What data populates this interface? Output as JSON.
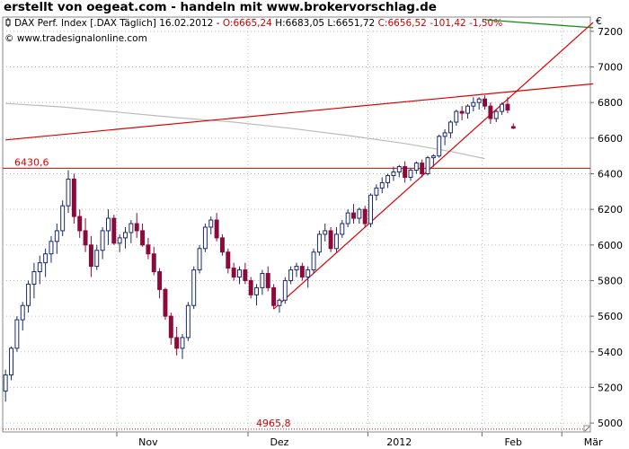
{
  "header": {
    "banner": "erstellt von oegeat.com - handeln mit www.brokervorschlag.de"
  },
  "chart_data": {
    "type": "candlestick",
    "title_parts": {
      "name": "DAX Perf. Index [.DAX  Täglich] 16.02.2012 - ",
      "ohlc_open": "O:6665,24",
      "ohlc_high": " H:6683,05",
      "ohlc_low": " L:6651,72",
      "ohlc_close": " C:6656,52 -101,42 -1,50%"
    },
    "copyright": "© www.tradesignalonline.com",
    "currency": "€",
    "y_ticks": [
      "5000",
      "5200",
      "5400",
      "5600",
      "5800",
      "6000",
      "6200",
      "6400",
      "6600",
      "6800",
      "7000",
      "7200"
    ],
    "ylim": [
      4950,
      7280
    ],
    "x_labels": [
      "Nov",
      "Dez",
      "2012",
      "Feb",
      "Mär"
    ],
    "x_label_index": [
      20,
      43,
      64,
      84,
      98
    ],
    "num_slots": 103,
    "h_lines": [
      {
        "label": "6430,6",
        "value": 6430.6,
        "color": "#dd0000"
      },
      {
        "label": "4965,8",
        "value": 4965.8,
        "color": "#dd0000",
        "dotted": true
      }
    ],
    "trend_lines": [
      {
        "from": [
          0,
          6590
        ],
        "to": [
          103,
          6905
        ],
        "color": "#dd0000"
      },
      {
        "from": [
          47,
          5640
        ],
        "to": [
          103,
          7250
        ],
        "color": "#dd0000"
      },
      {
        "from": [
          84,
          7265
        ],
        "to": [
          103,
          7220
        ],
        "color": "#118811"
      }
    ],
    "moving_average": {
      "color": "#bbbbbb",
      "points": [
        [
          0,
          6795
        ],
        [
          10,
          6775
        ],
        [
          20,
          6745
        ],
        [
          30,
          6715
        ],
        [
          40,
          6690
        ],
        [
          50,
          6655
        ],
        [
          60,
          6615
        ],
        [
          70,
          6570
        ],
        [
          78,
          6525
        ],
        [
          84,
          6485
        ]
      ]
    },
    "candles": [
      [
        5180,
        5300,
        5120,
        5270
      ],
      [
        5270,
        5430,
        5240,
        5420
      ],
      [
        5420,
        5600,
        5400,
        5580
      ],
      [
        5580,
        5680,
        5520,
        5660
      ],
      [
        5660,
        5800,
        5620,
        5780
      ],
      [
        5780,
        5900,
        5700,
        5850
      ],
      [
        5850,
        5940,
        5780,
        5900
      ],
      [
        5900,
        5980,
        5820,
        5950
      ],
      [
        5950,
        6050,
        5900,
        6020
      ],
      [
        6020,
        6120,
        5950,
        6080
      ],
      [
        6080,
        6250,
        6050,
        6220
      ],
      [
        6220,
        6420,
        6180,
        6370
      ],
      [
        6370,
        6400,
        6120,
        6160
      ],
      [
        6160,
        6200,
        6040,
        6080
      ],
      [
        6080,
        6150,
        5960,
        6000
      ],
      [
        6000,
        6050,
        5820,
        5880
      ],
      [
        5880,
        6000,
        5860,
        5970
      ],
      [
        5970,
        6100,
        5920,
        6080
      ],
      [
        6080,
        6200,
        6000,
        6150
      ],
      [
        6150,
        6170,
        6000,
        6010
      ],
      [
        6010,
        6060,
        5960,
        6040
      ],
      [
        6040,
        6100,
        5980,
        6070
      ],
      [
        6070,
        6140,
        6010,
        6120
      ],
      [
        6120,
        6180,
        6040,
        6080
      ],
      [
        6080,
        6120,
        5990,
        6000
      ],
      [
        6000,
        6040,
        5920,
        5950
      ],
      [
        5950,
        5990,
        5830,
        5850
      ],
      [
        5850,
        5870,
        5700,
        5750
      ],
      [
        5750,
        5760,
        5580,
        5600
      ],
      [
        5600,
        5620,
        5440,
        5480
      ],
      [
        5480,
        5540,
        5380,
        5420
      ],
      [
        5420,
        5500,
        5360,
        5480
      ],
      [
        5480,
        5680,
        5460,
        5660
      ],
      [
        5660,
        5880,
        5640,
        5860
      ],
      [
        5860,
        6000,
        5840,
        5980
      ],
      [
        5980,
        6120,
        5960,
        6100
      ],
      [
        6100,
        6160,
        6060,
        6140
      ],
      [
        6140,
        6180,
        6020,
        6040
      ],
      [
        6040,
        6060,
        5940,
        5960
      ],
      [
        5960,
        5980,
        5840,
        5870
      ],
      [
        5870,
        5900,
        5800,
        5820
      ],
      [
        5820,
        5880,
        5780,
        5860
      ],
      [
        5860,
        5900,
        5780,
        5800
      ],
      [
        5800,
        5820,
        5700,
        5720
      ],
      [
        5720,
        5780,
        5660,
        5760
      ],
      [
        5760,
        5860,
        5720,
        5840
      ],
      [
        5840,
        5880,
        5740,
        5760
      ],
      [
        5760,
        5780,
        5640,
        5660
      ],
      [
        5660,
        5700,
        5620,
        5690
      ],
      [
        5690,
        5820,
        5670,
        5800
      ],
      [
        5800,
        5880,
        5780,
        5860
      ],
      [
        5860,
        5900,
        5820,
        5880
      ],
      [
        5880,
        5900,
        5800,
        5820
      ],
      [
        5820,
        5880,
        5760,
        5860
      ],
      [
        5860,
        5980,
        5840,
        5960
      ],
      [
        5960,
        6080,
        5940,
        6060
      ],
      [
        6060,
        6120,
        6020,
        6080
      ],
      [
        6080,
        6100,
        5960,
        5980
      ],
      [
        5980,
        6100,
        5960,
        6060
      ],
      [
        6060,
        6140,
        6040,
        6120
      ],
      [
        6120,
        6200,
        6100,
        6180
      ],
      [
        6180,
        6230,
        6120,
        6150
      ],
      [
        6150,
        6210,
        6120,
        6200
      ],
      [
        6200,
        6220,
        6100,
        6120
      ],
      [
        6120,
        6290,
        6100,
        6280
      ],
      [
        6280,
        6340,
        6250,
        6320
      ],
      [
        6320,
        6380,
        6290,
        6350
      ],
      [
        6350,
        6400,
        6320,
        6390
      ],
      [
        6390,
        6440,
        6360,
        6410
      ],
      [
        6410,
        6450,
        6380,
        6440
      ],
      [
        6440,
        6470,
        6350,
        6380
      ],
      [
        6380,
        6430,
        6360,
        6420
      ],
      [
        6420,
        6470,
        6400,
        6460
      ],
      [
        6460,
        6480,
        6380,
        6400
      ],
      [
        6400,
        6500,
        6390,
        6490
      ],
      [
        6490,
        6510,
        6440,
        6500
      ],
      [
        6500,
        6620,
        6490,
        6610
      ],
      [
        6610,
        6650,
        6560,
        6630
      ],
      [
        6630,
        6700,
        6600,
        6690
      ],
      [
        6690,
        6760,
        6670,
        6750
      ],
      [
        6750,
        6780,
        6700,
        6740
      ],
      [
        6740,
        6790,
        6710,
        6780
      ],
      [
        6780,
        6830,
        6750,
        6800
      ],
      [
        6800,
        6830,
        6760,
        6820
      ],
      [
        6820,
        6840,
        6760,
        6780
      ],
      [
        6780,
        6800,
        6680,
        6710
      ],
      [
        6710,
        6760,
        6690,
        6750
      ],
      [
        6750,
        6800,
        6730,
        6790
      ],
      [
        6790,
        6830,
        6740,
        6758
      ],
      [
        6665,
        6683,
        6651,
        6656
      ]
    ],
    "up_color": "#1a2a6c",
    "down_color": "#8b0a3a"
  }
}
